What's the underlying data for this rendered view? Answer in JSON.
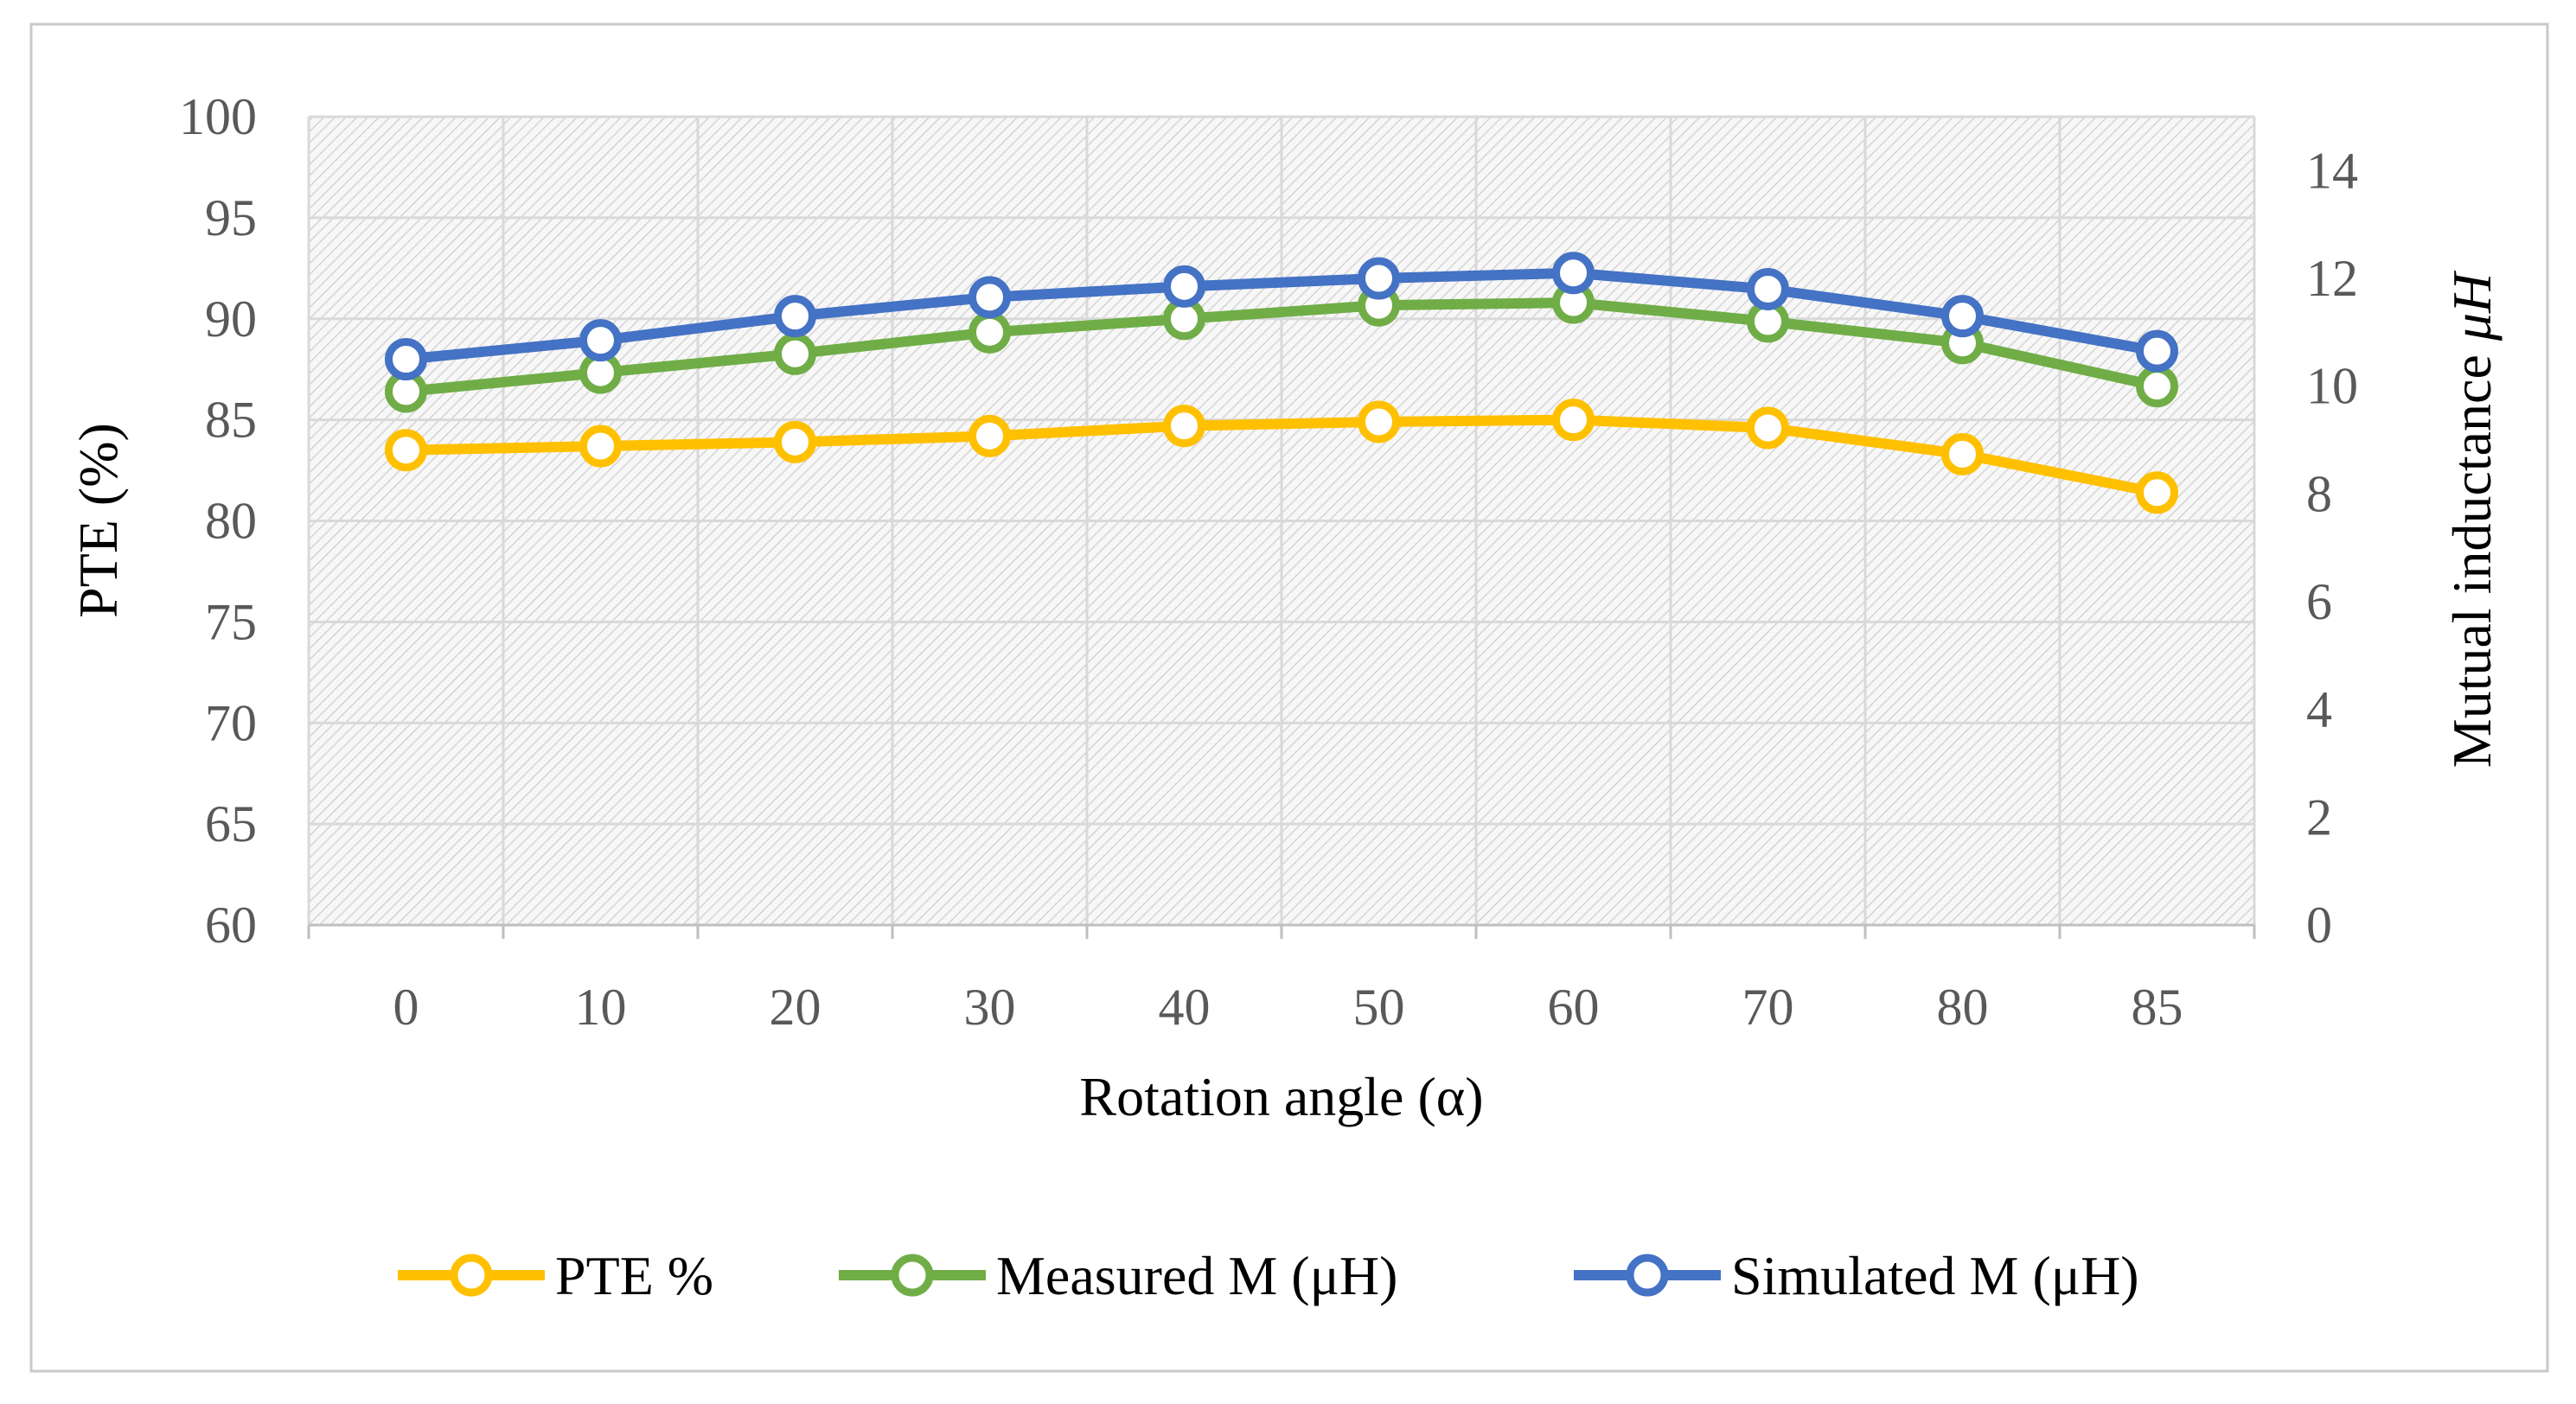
{
  "chart_data": {
    "type": "line",
    "categories": [
      "0",
      "10",
      "20",
      "30",
      "40",
      "50",
      "60",
      "70",
      "80",
      "85"
    ],
    "xlabel": "Rotation angle (α)",
    "ylabel": "PTE (%)",
    "y2label_text": "Mutual inductance ",
    "y2label_unit": "μH",
    "ylim": [
      60,
      100
    ],
    "yticks": [
      "60",
      "65",
      "70",
      "75",
      "80",
      "85",
      "90",
      "95",
      "100"
    ],
    "y2lim": [
      0,
      15
    ],
    "y2ticks": [
      "0",
      "2",
      "4",
      "6",
      "8",
      "10",
      "12",
      "14"
    ],
    "grid": true,
    "legend_position": "bottom",
    "series": [
      {
        "name": "PTE %",
        "axis": "left",
        "color": "#FFC000",
        "values": [
          83.5,
          83.7,
          83.9,
          84.2,
          84.7,
          84.9,
          85.0,
          84.6,
          83.3,
          81.4
        ]
      },
      {
        "name": "Measured M (μH)",
        "axis": "right",
        "color": "#70AD47",
        "values": [
          9.9,
          10.25,
          10.6,
          11.0,
          11.25,
          11.5,
          11.55,
          11.2,
          10.8,
          10.0
        ]
      },
      {
        "name": "Simulated M (μH)",
        "axis": "right",
        "color": "#4472C4",
        "values": [
          10.5,
          10.85,
          11.3,
          11.65,
          11.85,
          12.0,
          12.1,
          11.8,
          11.3,
          10.65
        ]
      }
    ]
  }
}
